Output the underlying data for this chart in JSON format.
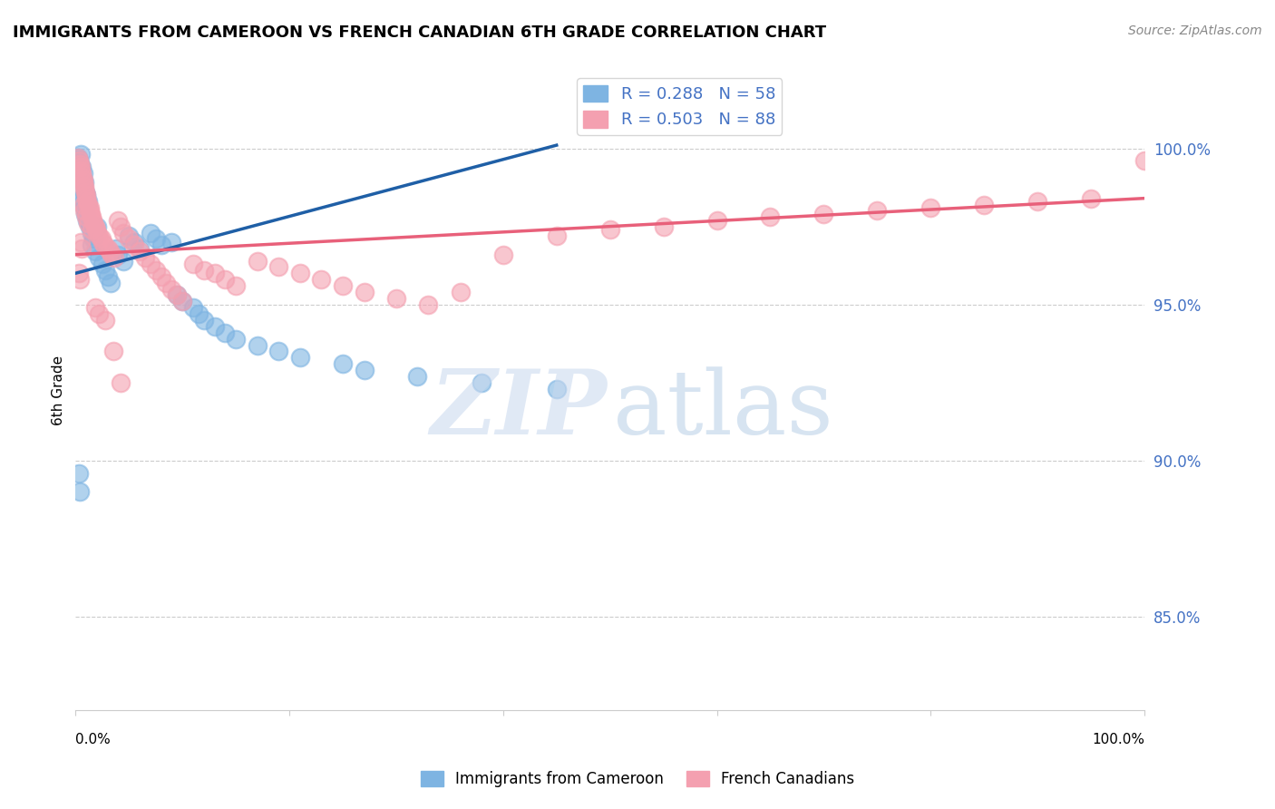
{
  "title": "IMMIGRANTS FROM CAMEROON VS FRENCH CANADIAN 6TH GRADE CORRELATION CHART",
  "source": "Source: ZipAtlas.com",
  "ylabel": "6th Grade",
  "legend_label_blue": "Immigrants from Cameroon",
  "legend_label_pink": "French Canadians",
  "R_blue": 0.288,
  "N_blue": 58,
  "R_pink": 0.503,
  "N_pink": 88,
  "ytick_labels": [
    "100.0%",
    "95.0%",
    "90.0%",
    "85.0%"
  ],
  "ytick_values": [
    1.0,
    0.95,
    0.9,
    0.85
  ],
  "xlim": [
    0.0,
    1.0
  ],
  "ylim": [
    0.82,
    1.025
  ],
  "blue_color": "#7EB4E2",
  "pink_color": "#F4A0B0",
  "blue_line_color": "#1F5FA6",
  "pink_line_color": "#E8607A",
  "blue_x": [
    0.002,
    0.003,
    0.003,
    0.004,
    0.004,
    0.005,
    0.005,
    0.006,
    0.006,
    0.006,
    0.007,
    0.007,
    0.008,
    0.008,
    0.009,
    0.009,
    0.01,
    0.011,
    0.012,
    0.013,
    0.015,
    0.015,
    0.017,
    0.018,
    0.02,
    0.022,
    0.025,
    0.028,
    0.03,
    0.033,
    0.038,
    0.04,
    0.045,
    0.05,
    0.055,
    0.06,
    0.07,
    0.075,
    0.08,
    0.09,
    0.095,
    0.1,
    0.11,
    0.115,
    0.12,
    0.13,
    0.14,
    0.15,
    0.17,
    0.19,
    0.21,
    0.25,
    0.27,
    0.32,
    0.38,
    0.45,
    0.003,
    0.004
  ],
  "blue_y": [
    0.997,
    0.996,
    0.993,
    0.995,
    0.991,
    0.998,
    0.99,
    0.994,
    0.987,
    0.984,
    0.992,
    0.983,
    0.989,
    0.981,
    0.986,
    0.979,
    0.985,
    0.977,
    0.983,
    0.975,
    0.973,
    0.969,
    0.971,
    0.967,
    0.975,
    0.965,
    0.963,
    0.961,
    0.959,
    0.957,
    0.968,
    0.966,
    0.964,
    0.972,
    0.97,
    0.968,
    0.973,
    0.971,
    0.969,
    0.97,
    0.953,
    0.951,
    0.949,
    0.947,
    0.945,
    0.943,
    0.941,
    0.939,
    0.937,
    0.935,
    0.933,
    0.931,
    0.929,
    0.927,
    0.925,
    0.923,
    0.896,
    0.89
  ],
  "pink_x": [
    0.002,
    0.003,
    0.004,
    0.005,
    0.005,
    0.006,
    0.006,
    0.007,
    0.007,
    0.008,
    0.008,
    0.009,
    0.01,
    0.01,
    0.011,
    0.012,
    0.013,
    0.013,
    0.014,
    0.015,
    0.016,
    0.017,
    0.018,
    0.019,
    0.02,
    0.022,
    0.024,
    0.025,
    0.027,
    0.03,
    0.032,
    0.034,
    0.036,
    0.04,
    0.042,
    0.045,
    0.05,
    0.055,
    0.06,
    0.065,
    0.07,
    0.075,
    0.08,
    0.085,
    0.09,
    0.095,
    0.1,
    0.11,
    0.12,
    0.13,
    0.14,
    0.15,
    0.17,
    0.19,
    0.21,
    0.23,
    0.25,
    0.27,
    0.3,
    0.33,
    0.36,
    0.4,
    0.45,
    0.5,
    0.55,
    0.6,
    0.65,
    0.7,
    0.75,
    0.8,
    0.85,
    0.9,
    0.95,
    1.0,
    0.003,
    0.004,
    0.005,
    0.006,
    0.007,
    0.008,
    0.01,
    0.012,
    0.015,
    0.018,
    0.022,
    0.028,
    0.035,
    0.042
  ],
  "pink_y": [
    0.997,
    0.996,
    0.995,
    0.994,
    0.993,
    0.992,
    0.991,
    0.99,
    0.989,
    0.988,
    0.987,
    0.986,
    0.985,
    0.984,
    0.983,
    0.982,
    0.981,
    0.98,
    0.979,
    0.978,
    0.977,
    0.976,
    0.975,
    0.974,
    0.973,
    0.972,
    0.971,
    0.97,
    0.969,
    0.968,
    0.967,
    0.966,
    0.965,
    0.977,
    0.975,
    0.973,
    0.971,
    0.969,
    0.967,
    0.965,
    0.963,
    0.961,
    0.959,
    0.957,
    0.955,
    0.953,
    0.951,
    0.963,
    0.961,
    0.96,
    0.958,
    0.956,
    0.964,
    0.962,
    0.96,
    0.958,
    0.956,
    0.954,
    0.952,
    0.95,
    0.954,
    0.966,
    0.972,
    0.974,
    0.975,
    0.977,
    0.978,
    0.979,
    0.98,
    0.981,
    0.982,
    0.983,
    0.984,
    0.996,
    0.96,
    0.958,
    0.97,
    0.968,
    0.982,
    0.98,
    0.978,
    0.976,
    0.974,
    0.949,
    0.947,
    0.945,
    0.935,
    0.925
  ],
  "blue_line_x": [
    0.0,
    0.45
  ],
  "blue_line_y": [
    0.96,
    1.001
  ],
  "pink_line_x": [
    0.0,
    1.0
  ],
  "pink_line_y": [
    0.966,
    0.984
  ]
}
